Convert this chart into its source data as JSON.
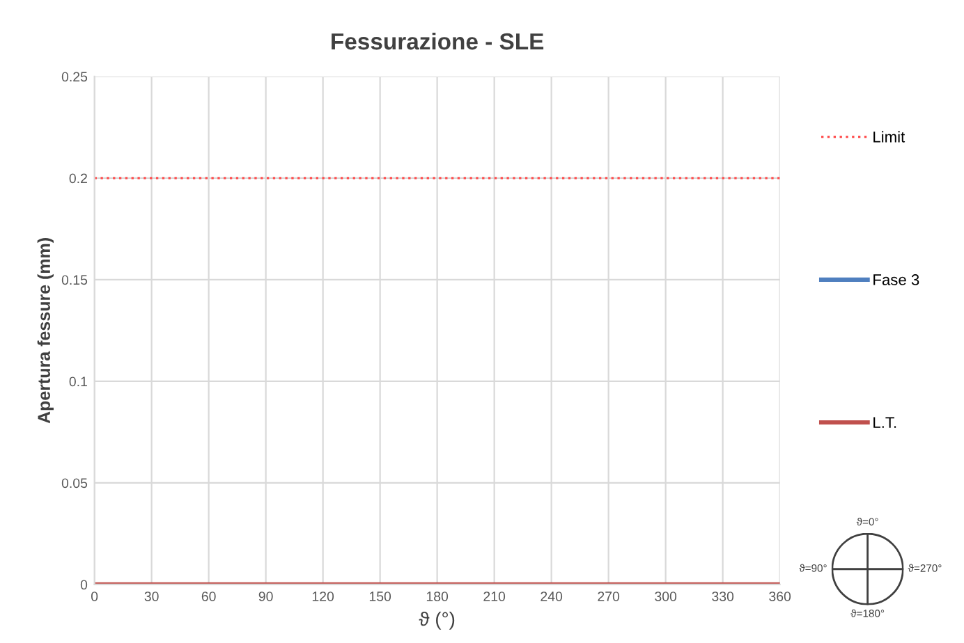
{
  "chart_data": {
    "type": "line",
    "title": "Fessurazione - SLE",
    "xlabel": "ϑ (°)",
    "ylabel": "Apertura fessure (mm)",
    "x": [
      0,
      360
    ],
    "series": [
      {
        "name": "Limit",
        "color": "#ff5050",
        "values": [
          0.2,
          0.2
        ],
        "line_style": "dotted"
      },
      {
        "name": "Fase 3",
        "color": "#4f7fbf",
        "values": [
          null,
          null
        ]
      },
      {
        "name": "L.T.",
        "color": "#c0504d",
        "values": [
          0,
          0
        ]
      }
    ],
    "xlim": [
      0,
      360
    ],
    "xticks": [
      0,
      30,
      60,
      90,
      120,
      150,
      180,
      210,
      240,
      270,
      300,
      330,
      360
    ],
    "ylim": [
      0,
      0.25
    ],
    "yticks": [
      0,
      0.05,
      0.1,
      0.15,
      0.2,
      0.25
    ],
    "grid": true,
    "legend": "right",
    "marker": "none",
    "annotations": [
      "ϑ=0°",
      "ϑ=90°",
      "ϑ=270°",
      "ϑ=180°"
    ]
  }
}
